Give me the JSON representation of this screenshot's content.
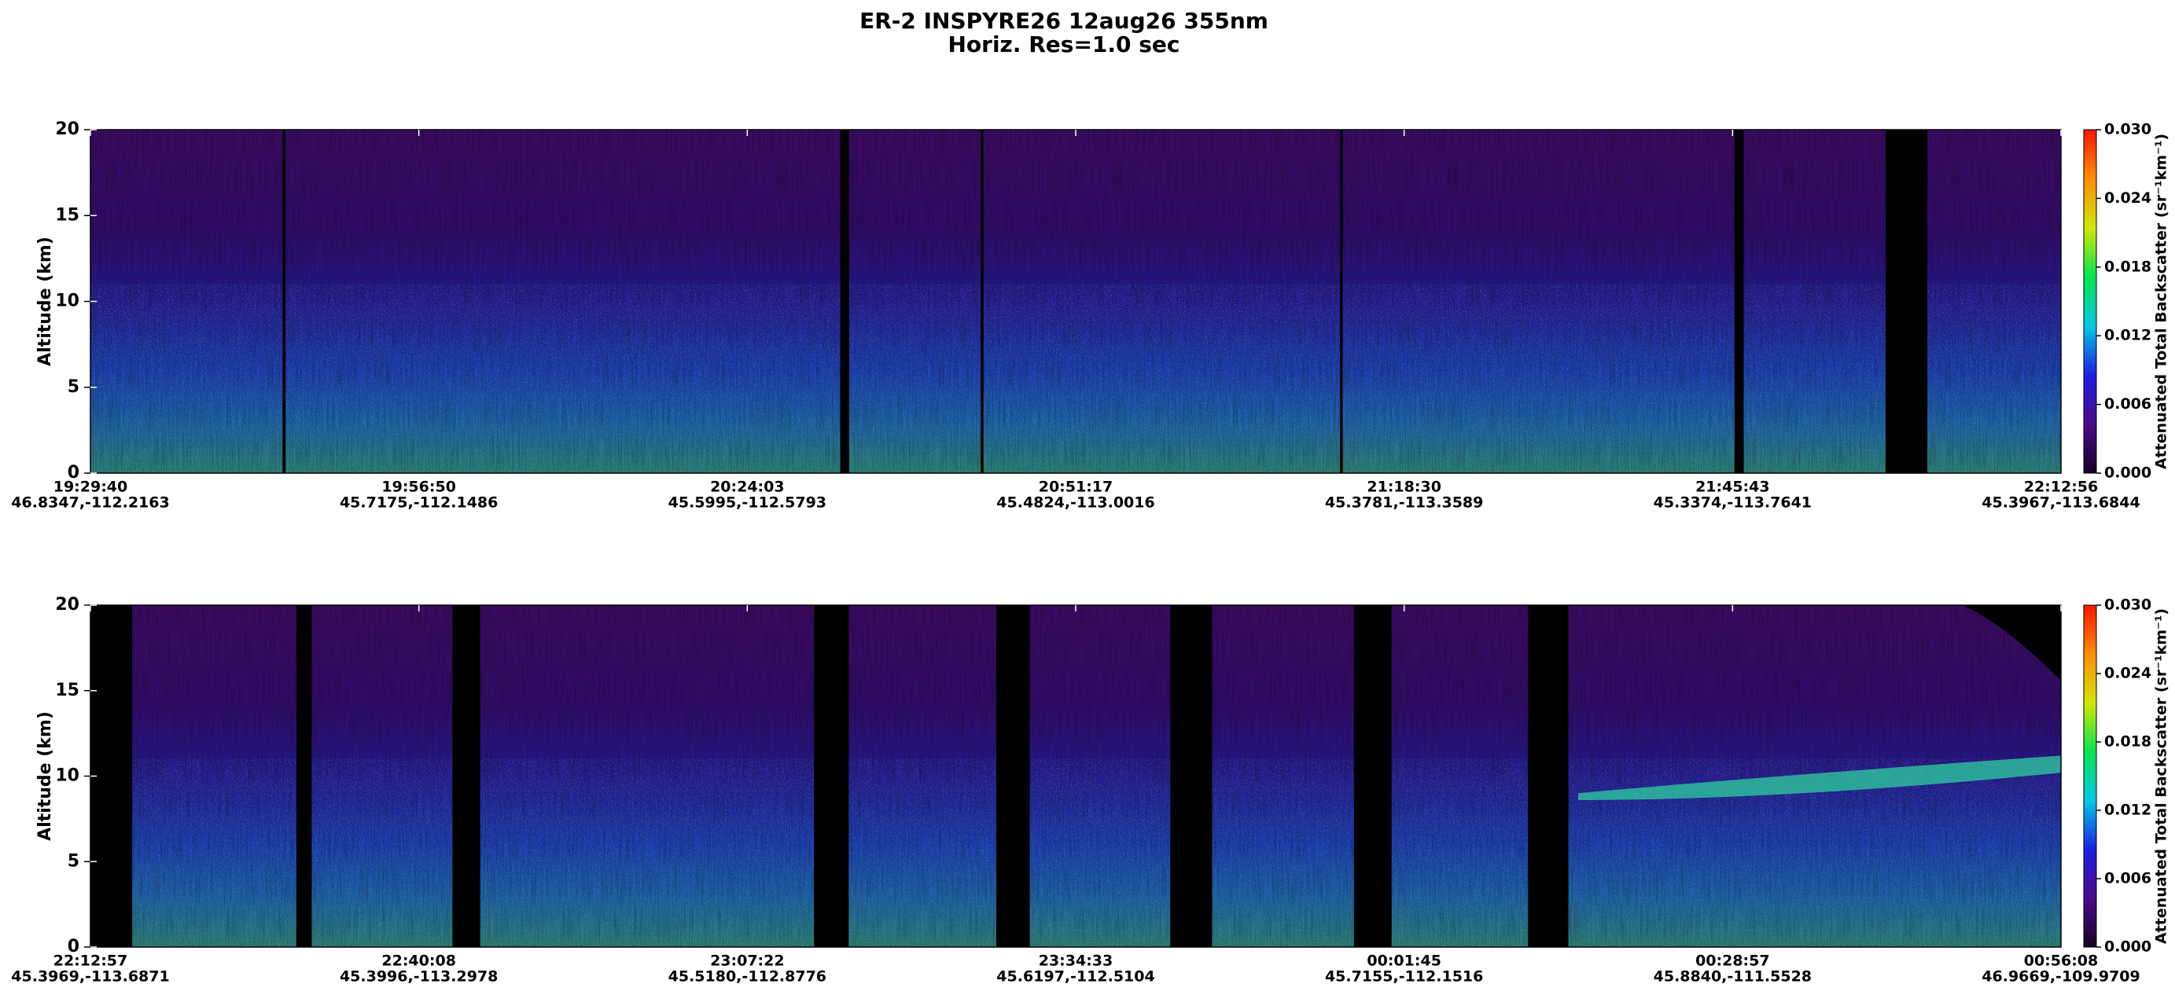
{
  "title": "ER-2  INSPYRE26  12aug26  355nm",
  "subtitle": "Horiz. Res=1.0 sec",
  "chart_data": [
    {
      "type": "heatmap",
      "y_label": "Altitude (km)",
      "ylim": [
        0,
        20
      ],
      "yticks": [
        0,
        5,
        10,
        15,
        20
      ],
      "categories": [
        "19:29:40",
        "19:56:50",
        "20:24:03",
        "20:51:17",
        "21:18:30",
        "21:45:43",
        "22:12:56"
      ],
      "positions": [
        "46.8347,-112.2163",
        "45.7175,-112.1486",
        "45.5995,-112.5793",
        "45.4824,-113.0016",
        "45.3781,-113.3589",
        "45.3374,-113.7641",
        "45.3967,-113.6844"
      ],
      "colorbar": {
        "label": "Attenuated Total Backscatter (sr⁻¹km⁻¹)",
        "lim": [
          0,
          0.03
        ],
        "ticks": [
          {
            "value": 0,
            "label": "0.000"
          },
          {
            "value": 0.006,
            "label": "0.006"
          },
          {
            "value": 0.012,
            "label": "0.012"
          },
          {
            "value": 0.018,
            "label": "0.018"
          },
          {
            "value": 0.024,
            "label": "0.024"
          },
          {
            "value": 0.03,
            "label": "0.030"
          }
        ],
        "colormap": [
          "#1a0028",
          "#4b0a8c",
          "#1e1ee6",
          "#00c8e6",
          "#00e650",
          "#d2e600",
          "#ff8c00",
          "#ff1400"
        ]
      }
    },
    {
      "type": "heatmap",
      "y_label": "Altitude (km)",
      "ylim": [
        0,
        20
      ],
      "yticks": [
        0,
        5,
        10,
        15,
        20
      ],
      "categories": [
        "22:12:57",
        "22:40:08",
        "23:07:22",
        "23:34:33",
        "00:01:45",
        "00:28:57",
        "00:56:08"
      ],
      "positions": [
        "45.3969,-113.6871",
        "45.3996,-113.2978",
        "45.5180,-112.8776",
        "45.6197,-112.5104",
        "45.7155,-112.1516",
        "45.8840,-111.5528",
        "46.9669,-109.9709"
      ],
      "colorbar": {
        "label": "Attenuated Total Backscatter (sr⁻¹km⁻¹)",
        "lim": [
          0,
          0.03
        ],
        "ticks": [
          {
            "value": 0,
            "label": "0.000"
          },
          {
            "value": 0.006,
            "label": "0.006"
          },
          {
            "value": 0.012,
            "label": "0.012"
          },
          {
            "value": 0.018,
            "label": "0.018"
          },
          {
            "value": 0.024,
            "label": "0.024"
          },
          {
            "value": 0.03,
            "label": "0.030"
          }
        ],
        "colormap": [
          "#1a0028",
          "#4b0a8c",
          "#1e1ee6",
          "#00c8e6",
          "#00e650",
          "#d2e600",
          "#ff8c00",
          "#ff1400"
        ]
      }
    }
  ]
}
